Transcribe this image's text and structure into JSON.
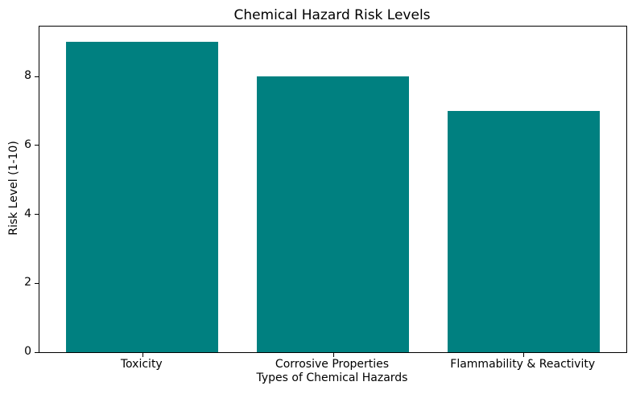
{
  "chart_data": {
    "type": "bar",
    "title": "Chemical Hazard Risk Levels",
    "xlabel": "Types of Chemical Hazards",
    "ylabel": "Risk Level (1-10)",
    "categories": [
      "Toxicity",
      "Corrosive Properties",
      "Flammability & Reactivity"
    ],
    "values": [
      9,
      8,
      7
    ],
    "yticks": [
      0,
      2,
      4,
      6,
      8
    ],
    "ylim": [
      0,
      9.45
    ],
    "bar_color": "#008080",
    "background_color": "#ffffff",
    "spine_color": "#000000",
    "grid": false,
    "legend_position": "none"
  }
}
